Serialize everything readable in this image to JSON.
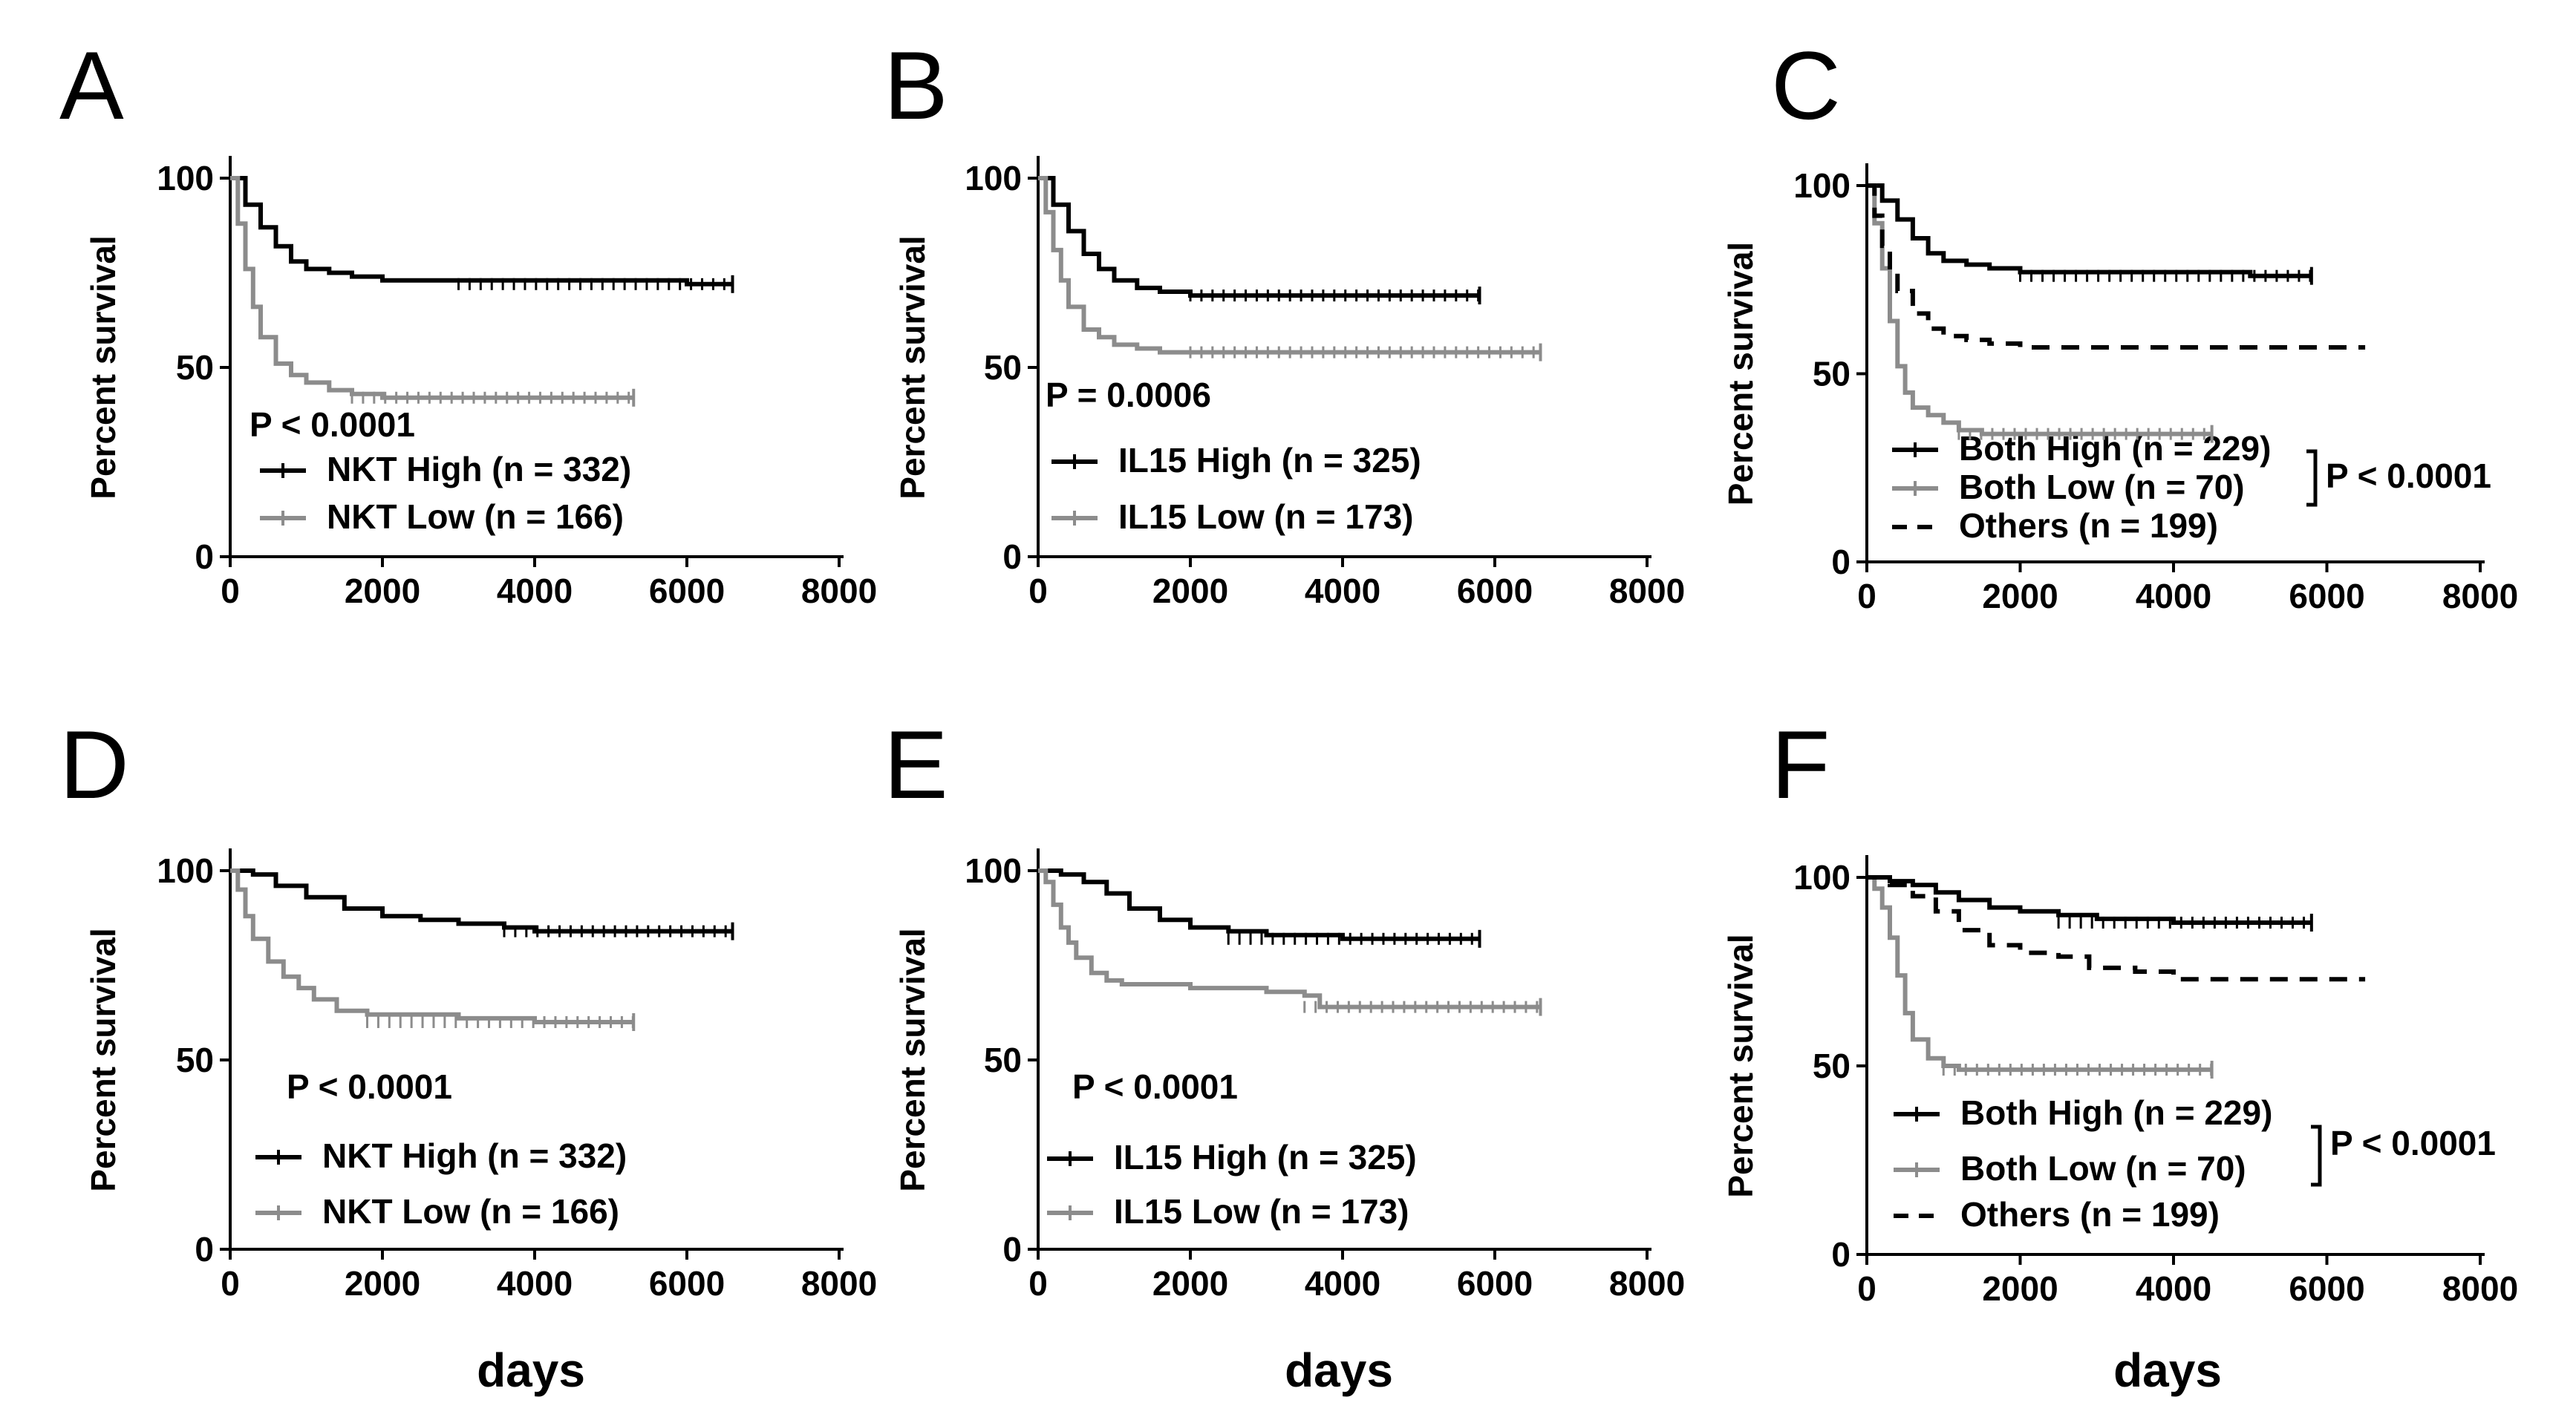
{
  "figure": {
    "xlabel_common": "days"
  },
  "chart_data": [
    {
      "panel": "A",
      "type": "line",
      "xlabel": "",
      "ylabel": "Percent survival",
      "xlim": [
        0,
        8000
      ],
      "ylim": [
        0,
        100
      ],
      "xticks": [
        "0",
        "2000",
        "4000",
        "6000",
        "8000"
      ],
      "yticks": [
        "0",
        "50",
        "100"
      ],
      "pvalue": "P < 0.0001",
      "series": [
        {
          "name": "NKT High (n = 332)",
          "color": "#000000",
          "dash": "solid",
          "x": [
            0,
            200,
            400,
            600,
            800,
            1000,
            1300,
            1600,
            2000,
            3000,
            4000,
            5000,
            6000,
            6600
          ],
          "y": [
            100,
            93,
            87,
            82,
            78,
            76,
            75,
            74,
            73,
            73,
            73,
            73,
            72,
            72
          ]
        },
        {
          "name": "NKT Low (n = 166)",
          "color": "#8c8c8c",
          "dash": "solid",
          "x": [
            0,
            100,
            200,
            300,
            400,
            600,
            800,
            1000,
            1300,
            1600,
            2000,
            3000,
            4000,
            5300
          ],
          "y": [
            100,
            88,
            76,
            66,
            58,
            51,
            48,
            46,
            44,
            43,
            42,
            42,
            42,
            42
          ]
        }
      ]
    },
    {
      "panel": "B",
      "type": "line",
      "xlabel": "",
      "ylabel": "Percent survival",
      "xlim": [
        0,
        8000
      ],
      "ylim": [
        0,
        100
      ],
      "xticks": [
        "0",
        "2000",
        "4000",
        "6000",
        "8000"
      ],
      "yticks": [
        "0",
        "50",
        "100"
      ],
      "pvalue": "P = 0.0006",
      "series": [
        {
          "name": "IL15 High (n = 325)",
          "color": "#000000",
          "dash": "solid",
          "x": [
            0,
            200,
            400,
            600,
            800,
            1000,
            1300,
            1600,
            2000,
            3000,
            4000,
            5000,
            5800
          ],
          "y": [
            100,
            93,
            86,
            80,
            76,
            73,
            71,
            70,
            69,
            69,
            69,
            69,
            69
          ]
        },
        {
          "name": "IL15 Low (n = 173)",
          "color": "#8c8c8c",
          "dash": "solid",
          "x": [
            0,
            100,
            200,
            300,
            400,
            600,
            800,
            1000,
            1300,
            1600,
            2000,
            3000,
            4000,
            5000,
            6600
          ],
          "y": [
            100,
            91,
            81,
            73,
            66,
            60,
            58,
            56,
            55,
            54,
            54,
            54,
            54,
            54,
            54
          ]
        }
      ]
    },
    {
      "panel": "C",
      "type": "line",
      "xlabel": "",
      "ylabel": "Percent survival",
      "xlim": [
        0,
        8000
      ],
      "ylim": [
        0,
        100
      ],
      "xticks": [
        "0",
        "2000",
        "4000",
        "6000",
        "8000"
      ],
      "yticks": [
        "0",
        "50",
        "100"
      ],
      "pvalue": "P < 0.0001",
      "series": [
        {
          "name": "Both High (n = 229)",
          "color": "#000000",
          "dash": "solid",
          "x": [
            0,
            200,
            400,
            600,
            800,
            1000,
            1300,
            1600,
            2000,
            3000,
            4000,
            5000,
            5800
          ],
          "y": [
            100,
            96,
            91,
            86,
            82,
            80,
            79,
            78,
            77,
            77,
            77,
            76,
            76
          ]
        },
        {
          "name": "Both Low (n = 70)",
          "color": "#8c8c8c",
          "dash": "solid",
          "x": [
            0,
            100,
            200,
            300,
            400,
            500,
            600,
            800,
            1000,
            1200,
            1500,
            2000,
            3000,
            4500
          ],
          "y": [
            100,
            90,
            78,
            64,
            52,
            45,
            41,
            39,
            37,
            35,
            34,
            34,
            34,
            34
          ]
        },
        {
          "name": "Others (n = 199)",
          "color": "#000000",
          "dash": "dashed",
          "x": [
            0,
            100,
            200,
            300,
            400,
            600,
            800,
            1000,
            1300,
            1600,
            2000,
            3000,
            4000,
            5000,
            6500
          ],
          "y": [
            100,
            92,
            84,
            77,
            72,
            66,
            62,
            60,
            59,
            58,
            57,
            57,
            57,
            57,
            57
          ]
        }
      ]
    },
    {
      "panel": "D",
      "type": "line",
      "xlabel": "days",
      "ylabel": "Percent survival",
      "xlim": [
        0,
        8000
      ],
      "ylim": [
        0,
        100
      ],
      "xticks": [
        "0",
        "2000",
        "4000",
        "6000",
        "8000"
      ],
      "yticks": [
        "0",
        "50",
        "100"
      ],
      "pvalue": "P < 0.0001",
      "series": [
        {
          "name": "NKT High (n = 332)",
          "color": "#000000",
          "dash": "solid",
          "x": [
            0,
            300,
            600,
            1000,
            1500,
            2000,
            2500,
            3000,
            3600,
            4000,
            5000,
            6000,
            6600
          ],
          "y": [
            100,
            99,
            96,
            93,
            90,
            88,
            87,
            86,
            85,
            84,
            84,
            84,
            84
          ]
        },
        {
          "name": "NKT Low (n = 166)",
          "color": "#8c8c8c",
          "dash": "solid",
          "x": [
            0,
            100,
            200,
            300,
            500,
            700,
            900,
            1100,
            1400,
            1800,
            2200,
            3000,
            4000,
            5300
          ],
          "y": [
            100,
            95,
            88,
            82,
            76,
            72,
            69,
            66,
            63,
            62,
            62,
            61,
            60,
            60
          ]
        }
      ]
    },
    {
      "panel": "E",
      "type": "line",
      "xlabel": "days",
      "ylabel": "Percent survival",
      "xlim": [
        0,
        8000
      ],
      "ylim": [
        0,
        100
      ],
      "xticks": [
        "0",
        "2000",
        "4000",
        "6000",
        "8000"
      ],
      "yticks": [
        "0",
        "50",
        "100"
      ],
      "pvalue": "P < 0.0001",
      "series": [
        {
          "name": "IL15 High (n = 325)",
          "color": "#000000",
          "dash": "solid",
          "x": [
            0,
            300,
            600,
            900,
            1200,
            1600,
            2000,
            2500,
            3000,
            4000,
            5000,
            5800
          ],
          "y": [
            100,
            99,
            97,
            94,
            90,
            87,
            85,
            84,
            83,
            82,
            82,
            82
          ]
        },
        {
          "name": "IL15 Low (n = 173)",
          "color": "#8c8c8c",
          "dash": "solid",
          "x": [
            0,
            100,
            200,
            300,
            400,
            500,
            700,
            900,
            1100,
            1500,
            2000,
            3000,
            3500,
            3700,
            4500,
            5500,
            6600
          ],
          "y": [
            100,
            97,
            91,
            85,
            81,
            77,
            73,
            71,
            70,
            70,
            69,
            68,
            67,
            64,
            64,
            64,
            64
          ]
        }
      ]
    },
    {
      "panel": "F",
      "type": "line",
      "xlabel": "days",
      "ylabel": "Percent survival",
      "xlim": [
        0,
        8000
      ],
      "ylim": [
        0,
        100
      ],
      "xticks": [
        "0",
        "2000",
        "4000",
        "6000",
        "8000"
      ],
      "yticks": [
        "0",
        "50",
        "100"
      ],
      "pvalue": "P < 0.0001",
      "series": [
        {
          "name": "Both High (n = 229)",
          "color": "#000000",
          "dash": "solid",
          "x": [
            0,
            300,
            600,
            900,
            1200,
            1600,
            2000,
            2500,
            3000,
            4000,
            5000,
            5800
          ],
          "y": [
            100,
            99,
            98,
            96,
            94,
            92,
            91,
            90,
            89,
            88,
            88,
            88
          ]
        },
        {
          "name": "Both Low (n = 70)",
          "color": "#8c8c8c",
          "dash": "solid",
          "x": [
            0,
            100,
            200,
            300,
            400,
            500,
            600,
            800,
            1000,
            1200,
            2000,
            3000,
            4500
          ],
          "y": [
            100,
            97,
            92,
            84,
            74,
            64,
            57,
            52,
            50,
            49,
            49,
            49,
            49
          ]
        },
        {
          "name": "Others (n = 199)",
          "color": "#000000",
          "dash": "dashed",
          "x": [
            0,
            300,
            600,
            900,
            1200,
            1600,
            2000,
            2500,
            2900,
            3500,
            4000,
            5000,
            6500
          ],
          "y": [
            100,
            98,
            95,
            91,
            86,
            82,
            80,
            79,
            76,
            75,
            73,
            73,
            73
          ]
        }
      ]
    }
  ]
}
